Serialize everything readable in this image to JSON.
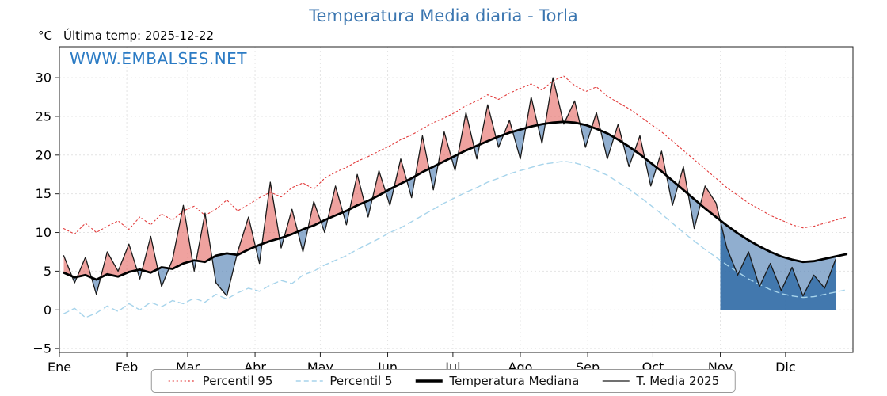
{
  "header": {
    "title": "Temperatura Media diaria - Torla",
    "units_label": "°C",
    "last_temp_label": "Última temp: 2025-12-22",
    "watermark": "WWW.EMBALSES.NET"
  },
  "legend": {
    "items": [
      {
        "label": "Percentil 95",
        "color": "#e23b3b",
        "style": "dotted"
      },
      {
        "label": "Percentil 5",
        "color": "#a7d4eb",
        "style": "dashed"
      },
      {
        "label": "Temperatura Mediana",
        "color": "#000000",
        "style": "thick"
      },
      {
        "label": "T. Media 2025",
        "color": "#1a1a1a",
        "style": "thin"
      }
    ]
  },
  "chart_data": {
    "type": "line",
    "title": "Temperatura Media diaria - Torla",
    "xlabel": "",
    "ylabel": "°C",
    "x_unit": "day_of_year",
    "x_max_day": 365,
    "month_labels": [
      "Ene",
      "Feb",
      "Mar",
      "Abr",
      "May",
      "Jun",
      "Jul",
      "Ago",
      "Sep",
      "Oct",
      "Nov",
      "Dic"
    ],
    "month_start_days": [
      0,
      31,
      59,
      90,
      120,
      151,
      181,
      212,
      243,
      273,
      304,
      334
    ],
    "yticks": [
      -5,
      0,
      5,
      10,
      15,
      20,
      25,
      30
    ],
    "ytick_labels": [
      "−5",
      "0",
      "5",
      "10",
      "15",
      "20",
      "25",
      "30"
    ],
    "ylim": [
      -5.5,
      34
    ],
    "grid": true,
    "legend_position": "bottom-center",
    "x_days": [
      2,
      7,
      12,
      17,
      22,
      27,
      32,
      37,
      42,
      47,
      52,
      57,
      62,
      67,
      72,
      77,
      82,
      87,
      92,
      97,
      102,
      107,
      112,
      117,
      122,
      127,
      132,
      137,
      142,
      147,
      152,
      157,
      162,
      167,
      172,
      177,
      182,
      187,
      192,
      197,
      202,
      207,
      212,
      217,
      222,
      227,
      232,
      237,
      242,
      247,
      252,
      257,
      262,
      267,
      272,
      277,
      282,
      287,
      292,
      297,
      302,
      307,
      312,
      317,
      322,
      327,
      332,
      337,
      342,
      347,
      352,
      357,
      362
    ],
    "series": [
      {
        "name": "Percentil 95",
        "color": "#e23b3b",
        "dash": "dotted",
        "width": 1.1,
        "values": [
          10.5,
          9.8,
          11.2,
          10.0,
          10.8,
          11.5,
          10.4,
          12.0,
          11.0,
          12.4,
          11.6,
          12.8,
          13.4,
          12.2,
          13.0,
          14.2,
          12.8,
          13.6,
          14.5,
          15.2,
          14.6,
          15.8,
          16.4,
          15.6,
          17.0,
          17.8,
          18.4,
          19.2,
          19.8,
          20.5,
          21.2,
          22.0,
          22.6,
          23.4,
          24.2,
          24.8,
          25.5,
          26.4,
          27.0,
          27.8,
          27.2,
          28.0,
          28.6,
          29.2,
          28.4,
          29.6,
          30.2,
          29.0,
          28.2,
          28.8,
          27.6,
          26.8,
          26.0,
          25.0,
          24.0,
          23.0,
          21.8,
          20.6,
          19.4,
          18.2,
          17.0,
          15.8,
          14.8,
          13.8,
          13.0,
          12.2,
          11.6,
          11.0,
          10.6,
          10.8,
          11.2,
          11.6,
          12.0
        ]
      },
      {
        "name": "Percentil 5",
        "color": "#a7d4eb",
        "dash": "dashed",
        "width": 1.4,
        "values": [
          -0.5,
          0.2,
          -1.0,
          -0.4,
          0.5,
          -0.2,
          0.8,
          0.0,
          1.0,
          0.4,
          1.2,
          0.8,
          1.5,
          1.0,
          2.0,
          1.4,
          2.2,
          2.8,
          2.4,
          3.2,
          3.8,
          3.4,
          4.5,
          5.0,
          5.8,
          6.4,
          7.0,
          7.8,
          8.5,
          9.2,
          10.0,
          10.6,
          11.4,
          12.2,
          13.0,
          13.8,
          14.5,
          15.2,
          15.8,
          16.5,
          17.0,
          17.6,
          18.0,
          18.4,
          18.8,
          19.0,
          19.2,
          19.0,
          18.6,
          18.0,
          17.4,
          16.5,
          15.6,
          14.6,
          13.5,
          12.4,
          11.2,
          10.0,
          8.9,
          7.8,
          6.8,
          5.8,
          4.9,
          4.0,
          3.3,
          2.6,
          2.1,
          1.8,
          1.6,
          1.7,
          2.0,
          2.3,
          2.6
        ]
      },
      {
        "name": "Temperatura Mediana",
        "color": "#000000",
        "dash": "solid",
        "width": 2.8,
        "values": [
          4.8,
          4.2,
          4.5,
          3.9,
          4.6,
          4.3,
          4.9,
          5.2,
          4.8,
          5.5,
          5.3,
          6.0,
          6.4,
          6.2,
          7.0,
          7.3,
          7.1,
          7.8,
          8.4,
          8.9,
          9.3,
          9.8,
          10.4,
          10.9,
          11.6,
          12.2,
          12.8,
          13.5,
          14.1,
          14.8,
          15.6,
          16.3,
          17.0,
          17.8,
          18.5,
          19.2,
          19.9,
          20.6,
          21.2,
          21.8,
          22.4,
          22.9,
          23.3,
          23.7,
          24.0,
          24.2,
          24.3,
          24.2,
          23.9,
          23.4,
          22.8,
          22.0,
          21.1,
          20.1,
          19.0,
          17.9,
          16.7,
          15.5,
          14.3,
          13.1,
          12.0,
          10.9,
          9.9,
          9.0,
          8.2,
          7.5,
          6.9,
          6.5,
          6.2,
          6.3,
          6.6,
          6.9,
          7.2
        ]
      },
      {
        "name": "T. Media 2025",
        "color": "#1a1a1a",
        "dash": "solid",
        "width": 1.3,
        "values": [
          7.0,
          3.5,
          6.8,
          2.0,
          7.5,
          5.0,
          8.5,
          4.0,
          9.5,
          3.0,
          6.5,
          13.5,
          5.0,
          12.5,
          3.5,
          1.8,
          7.5,
          12.0,
          6.0,
          16.5,
          8.0,
          13.0,
          7.5,
          14.0,
          10.0,
          16.0,
          11.0,
          17.5,
          12.0,
          18.0,
          13.5,
          19.5,
          14.5,
          22.5,
          15.5,
          23.0,
          18.0,
          25.5,
          19.5,
          26.5,
          21.0,
          24.5,
          19.5,
          27.5,
          21.5,
          30.0,
          24.0,
          27.0,
          21.0,
          25.5,
          19.5,
          24.0,
          18.5,
          22.5,
          16.0,
          20.5,
          13.5,
          18.5,
          10.5,
          16.0,
          13.8,
          8.0,
          4.5,
          7.5,
          3.0,
          6.0,
          2.5,
          5.5,
          1.8,
          4.5,
          2.8,
          6.5,
          null
        ]
      }
    ],
    "fills": {
      "above_median_color": "rgba(225,85,80,0.55)",
      "below_median_color": "rgba(70,120,175,0.6)",
      "zero_fill": {
        "start_day": 304,
        "end_day": 357,
        "color": "rgba(45,105,165,0.9)"
      }
    }
  }
}
